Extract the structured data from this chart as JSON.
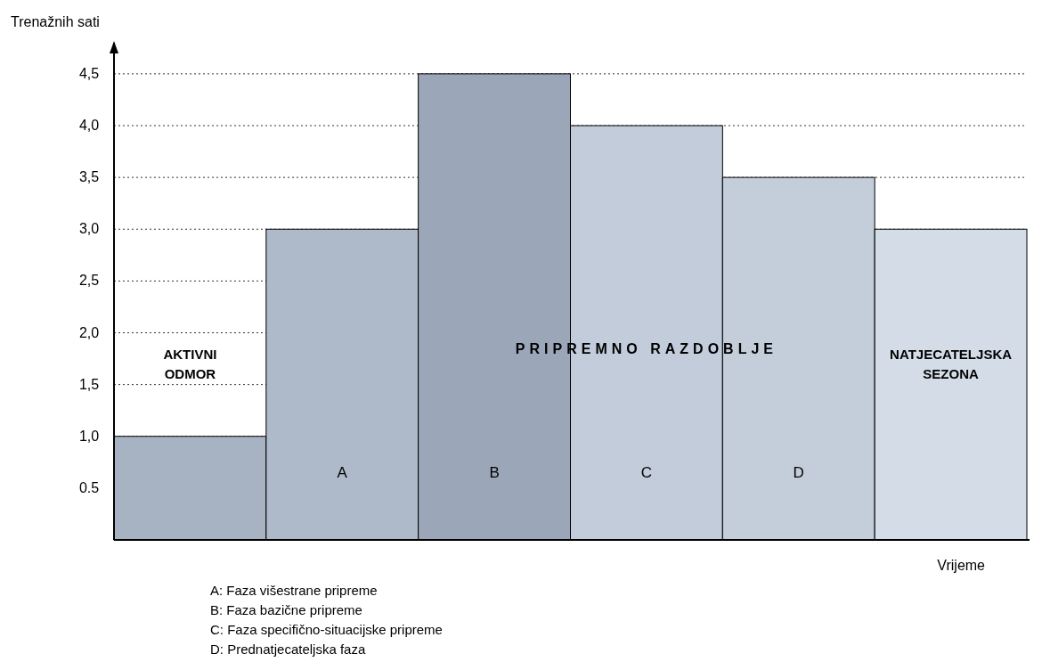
{
  "chart_data": {
    "type": "bar",
    "xlabel": "Vrijeme",
    "ylabel": "Trenažnih sati",
    "categories": [
      "AKTIVNI ODMOR",
      "A",
      "B",
      "C",
      "D",
      "NATJECATELJSKA SEZONA"
    ],
    "values": [
      1.0,
      3.0,
      4.5,
      4.0,
      3.5,
      3.0
    ],
    "colors": [
      "#a7b2c2",
      "#aeb9c9",
      "#9ba7b9",
      "#c2ccda",
      "#c4cedb",
      "#d3dce7"
    ],
    "ylim": [
      0,
      4.8
    ],
    "yticks": [
      {
        "value": 0.5,
        "label": "0.5"
      },
      {
        "value": 1.0,
        "label": "1,0"
      },
      {
        "value": 1.5,
        "label": "1,5"
      },
      {
        "value": 2.0,
        "label": "2,0"
      },
      {
        "value": 2.5,
        "label": "2,5"
      },
      {
        "value": 3.0,
        "label": "3,0"
      },
      {
        "value": 3.5,
        "label": "3,5"
      },
      {
        "value": 4.0,
        "label": "4,0"
      },
      {
        "value": 4.5,
        "label": "4,5"
      }
    ],
    "grid": "y",
    "annotations": [
      "PRIPREMNO RAZDOBLJE",
      "A: Faza višestrane pripreme",
      "B: Faza bazične pripreme",
      "C: Faza specifično-situacijske pripreme",
      "D: Prednatjecateljska faza"
    ]
  }
}
